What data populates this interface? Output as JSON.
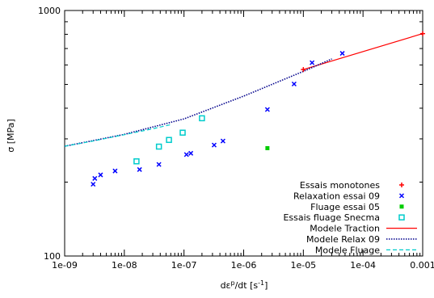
{
  "chart_data": {
    "type": "scatter",
    "xlabel": "dε",
    "xlabel_sup": "p",
    "xlabel_rest": "/dt [s",
    "xlabel_exp": "-1",
    "xlabel_close": "]",
    "ylabel": "σ [MPa]",
    "x_scale": "log",
    "y_scale": "log",
    "xlim": [
      1e-09,
      0.001
    ],
    "ylim": [
      100,
      1000
    ],
    "grid": false,
    "legend_position": "bottom-right",
    "x_ticks": [
      {
        "value": 1e-09,
        "label": "1e-09"
      },
      {
        "value": 1e-08,
        "label": "1e-08"
      },
      {
        "value": 1e-07,
        "label": "1e-07"
      },
      {
        "value": 1e-06,
        "label": "1e-06"
      },
      {
        "value": 1e-05,
        "label": "1e-05"
      },
      {
        "value": 0.0001,
        "label": "1e-04"
      },
      {
        "value": 0.001,
        "label": "0.001"
      }
    ],
    "y_ticks": [
      {
        "value": 100,
        "label": "100"
      },
      {
        "value": 1000,
        "label": "1000"
      }
    ],
    "series": [
      {
        "name": "Essais monotones",
        "kind": "points",
        "marker": "plus",
        "color": "#ff0000",
        "points": [
          [
            1e-05,
            575
          ],
          [
            0.001,
            805
          ]
        ]
      },
      {
        "name": "Relaxation essai 09",
        "kind": "points",
        "marker": "cross",
        "color": "#0000ff",
        "points": [
          [
            3e-09,
            196
          ],
          [
            3.2e-09,
            207
          ],
          [
            4e-09,
            214
          ],
          [
            7e-09,
            222
          ],
          [
            1.8e-08,
            225
          ],
          [
            3.8e-08,
            236
          ],
          [
            1.1e-07,
            259
          ],
          [
            1.3e-07,
            262
          ],
          [
            3.2e-07,
            283
          ],
          [
            4.5e-07,
            294
          ],
          [
            2.5e-06,
            395
          ],
          [
            7e-06,
            502
          ],
          [
            1.4e-05,
            613
          ],
          [
            4.5e-05,
            669
          ]
        ]
      },
      {
        "name": "Fluage essai 05",
        "kind": "points",
        "marker": "filled-square",
        "color": "#00cc00",
        "points": [
          [
            2.5e-06,
            275
          ]
        ]
      },
      {
        "name": "Essais fluage Snecma",
        "kind": "points",
        "marker": "open-square",
        "color": "#00cccc",
        "points": [
          [
            1.6e-08,
            243
          ],
          [
            3.8e-08,
            279
          ],
          [
            5.6e-08,
            297
          ],
          [
            9.5e-08,
            318
          ],
          [
            2e-07,
            364
          ]
        ]
      },
      {
        "name": "Modele Traction",
        "kind": "line",
        "style": "solid",
        "color": "#ff0000",
        "points": [
          [
            1e-05,
            575
          ],
          [
            0.001,
            805
          ]
        ]
      },
      {
        "name": "Modele Relax 09",
        "kind": "line",
        "style": "dotted",
        "color": "#00008b",
        "points": [
          [
            1e-09,
            280
          ],
          [
            1e-08,
            313
          ],
          [
            1e-07,
            362
          ],
          [
            1e-06,
            448
          ],
          [
            1e-05,
            565
          ],
          [
            3e-05,
            635
          ]
        ]
      },
      {
        "name": "Modele Fluage",
        "kind": "line",
        "style": "dashed",
        "color": "#00cccc",
        "points": [
          [
            1e-09,
            280
          ],
          [
            3e-09,
            294
          ],
          [
            1e-08,
            312
          ],
          [
            3e-08,
            330
          ],
          [
            6e-08,
            343
          ]
        ]
      }
    ]
  }
}
